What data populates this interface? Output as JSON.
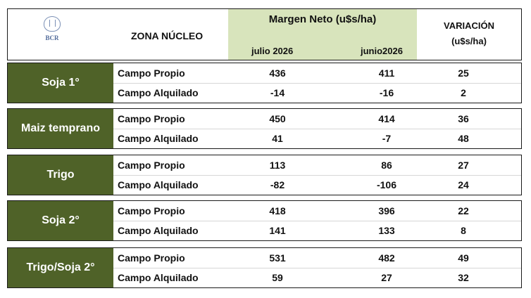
{
  "header": {
    "logo_text": "BCR",
    "zone": "ZONA NÚCLEO",
    "margin_title": "Margen Neto (u$s/ha)",
    "col_july": "julio 2026",
    "col_june": "junio2026",
    "variation_line1": "VARIACIÓN",
    "variation_line2": "(u$s/ha)"
  },
  "groups": [
    {
      "crop": "Soja 1°",
      "rows": [
        {
          "label": "Campo Propio",
          "july": "436",
          "june": "411",
          "var": "25"
        },
        {
          "label": "Campo Alquilado",
          "july": "-14",
          "june": "-16",
          "var": "2"
        }
      ]
    },
    {
      "crop": "Maiz temprano",
      "rows": [
        {
          "label": "Campo Propio",
          "july": "450",
          "june": "414",
          "var": "36"
        },
        {
          "label": "Campo Alquilado",
          "july": "41",
          "june": "-7",
          "var": "48"
        }
      ]
    },
    {
      "crop": "Trigo",
      "rows": [
        {
          "label": "Campo Propio",
          "july": "113",
          "june": "86",
          "var": "27"
        },
        {
          "label": "Campo Alquilado",
          "july": "-82",
          "june": "-106",
          "var": "24"
        }
      ]
    },
    {
      "crop": "Soja 2°",
      "rows": [
        {
          "label": "Campo Propio",
          "july": "418",
          "june": "396",
          "var": "22"
        },
        {
          "label": "Campo Alquilado",
          "july": "141",
          "june": "133",
          "var": "8"
        }
      ]
    },
    {
      "crop": "Trigo/Soja 2°",
      "rows": [
        {
          "label": "Campo Propio",
          "july": "531",
          "june": "482",
          "var": "49"
        },
        {
          "label": "Campo Alquilado",
          "july": "59",
          "june": "27",
          "var": "32"
        }
      ]
    }
  ],
  "colors": {
    "crop_bg": "#4f6228",
    "header_green": "#d8e4bc"
  }
}
